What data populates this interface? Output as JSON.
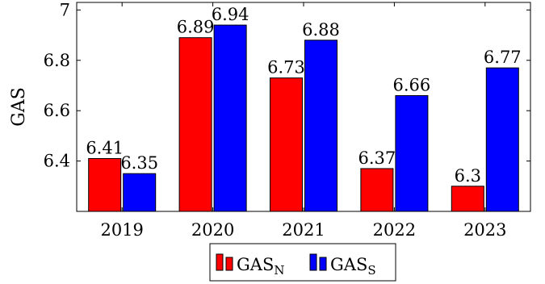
{
  "chart_data": {
    "type": "bar",
    "title": "",
    "xlabel": "",
    "ylabel": "GAS",
    "categories": [
      "2019",
      "2020",
      "2021",
      "2022",
      "2023"
    ],
    "ylim": [
      6.2,
      7.03
    ],
    "yticks": [
      6.4,
      6.6,
      6.8,
      7
    ],
    "ytick_labels": [
      "6.4",
      "6.6",
      "6.8",
      "7"
    ],
    "grid": false,
    "legend_position": "bottom-center",
    "series": [
      {
        "key": "N",
        "name_base": "GAS",
        "name_sub": "N",
        "color": "#ff0000",
        "values": [
          6.41,
          6.89,
          6.73,
          6.37,
          6.3
        ],
        "labels": [
          "6.41",
          "6.89",
          "6.73",
          "6.37",
          "6.3"
        ]
      },
      {
        "key": "S",
        "name_base": "GAS",
        "name_sub": "S",
        "color": "#0000ff",
        "values": [
          6.35,
          6.94,
          6.88,
          6.66,
          6.77
        ],
        "labels": [
          "6.35",
          "6.94",
          "6.88",
          "6.66",
          "6.77"
        ]
      }
    ]
  }
}
